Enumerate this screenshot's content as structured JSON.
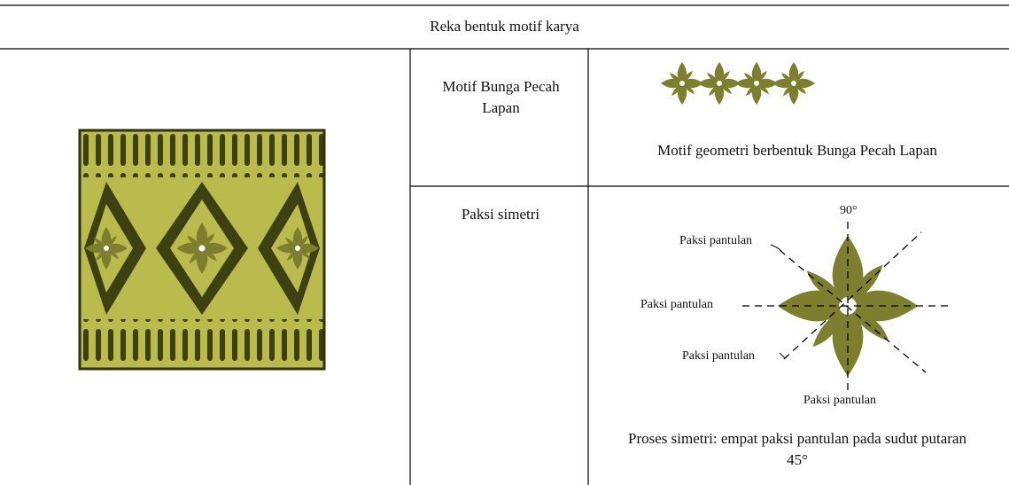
{
  "table": {
    "header": "Reka bentuk motif karya",
    "rows": [
      {
        "label": "Motif Bunga Pecah Lapan",
        "caption": "Motif geometri berbentuk Bunga Pecah Lapan"
      },
      {
        "label": "Paksi simetri",
        "diagram": {
          "angle_label": "90°",
          "axis_labels": [
            "Paksi pantulan",
            "Paksi pantulan",
            "Paksi pantulan",
            "Paksi pantulan"
          ]
        },
        "caption": "Proses simetri: empat paksi pantulan pada sudut putaran 45°"
      }
    ]
  }
}
